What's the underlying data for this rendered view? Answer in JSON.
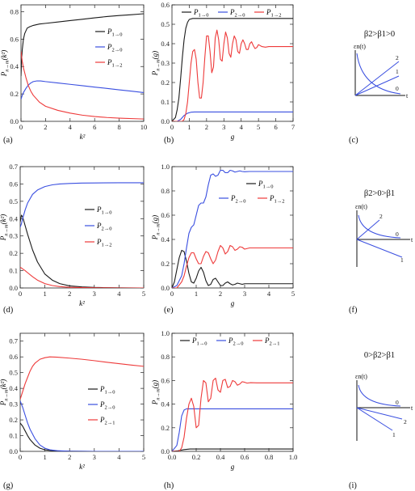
{
  "colors": {
    "black": "#1a1a1a",
    "blue": "#3a4fe0",
    "red": "#ee3a3a",
    "frame": "#222222"
  },
  "panel_labels": [
    "(a)",
    "(b)",
    "(c)",
    "(d)",
    "(e)",
    "(f)",
    "(g)",
    "(h)",
    "(i)"
  ],
  "chart_data": [
    {
      "panel": "(a)",
      "type": "line",
      "xlabel": "k²",
      "ylabel": "P_{n→m}(k²)",
      "xlim": [
        0,
        10
      ],
      "ylim": [
        0,
        0.85
      ],
      "xticks": [
        0,
        2,
        4,
        6,
        8,
        10
      ],
      "yticks": [
        0.0,
        0.2,
        0.4,
        0.6,
        0.8
      ],
      "legend": {
        "placement": "right"
      },
      "series": [
        {
          "name": "P1→0",
          "color": "black",
          "x": [
            0,
            0.05,
            0.1,
            0.2,
            0.3,
            0.5,
            0.7,
            1,
            1.5,
            2,
            3,
            4,
            5,
            6,
            7,
            8,
            9,
            10
          ],
          "y": [
            0.33,
            0.45,
            0.52,
            0.6,
            0.64,
            0.68,
            0.69,
            0.7,
            0.71,
            0.715,
            0.725,
            0.735,
            0.745,
            0.755,
            0.765,
            0.772,
            0.778,
            0.785
          ]
        },
        {
          "name": "P2→0",
          "color": "blue",
          "x": [
            0,
            0.1,
            0.2,
            0.4,
            0.6,
            0.8,
            1,
            1.3,
            1.6,
            2,
            3,
            4,
            5,
            6,
            7,
            8,
            9,
            10
          ],
          "y": [
            0.16,
            0.19,
            0.21,
            0.24,
            0.265,
            0.28,
            0.29,
            0.295,
            0.295,
            0.29,
            0.28,
            0.27,
            0.26,
            0.25,
            0.24,
            0.23,
            0.22,
            0.21
          ]
        },
        {
          "name": "P1→2",
          "color": "red",
          "x": [
            0,
            0.1,
            0.2,
            0.4,
            0.6,
            0.8,
            1,
            1.5,
            2,
            3,
            4,
            5,
            6,
            7,
            8,
            10
          ],
          "y": [
            0.51,
            0.44,
            0.39,
            0.32,
            0.26,
            0.22,
            0.19,
            0.14,
            0.11,
            0.08,
            0.06,
            0.045,
            0.035,
            0.028,
            0.023,
            0.017
          ]
        }
      ]
    },
    {
      "panel": "(b)",
      "type": "line",
      "xlabel": "g",
      "ylabel": "P_{n→m}(g)",
      "xlim": [
        0,
        7
      ],
      "ylim": [
        0,
        0.6
      ],
      "xticks": [
        0,
        1,
        2,
        3,
        4,
        5,
        6,
        7
      ],
      "yticks": [
        0.0,
        0.1,
        0.2,
        0.3,
        0.4,
        0.5,
        0.6
      ],
      "legend": {
        "placement": "top"
      },
      "series": [
        {
          "name": "P1→0",
          "color": "black",
          "x": [
            0,
            0.2,
            0.3,
            0.4,
            0.5,
            0.6,
            0.7,
            0.8,
            0.9,
            1.0,
            1.2,
            7
          ],
          "y": [
            0,
            0.02,
            0.06,
            0.12,
            0.22,
            0.33,
            0.42,
            0.48,
            0.51,
            0.525,
            0.53,
            0.53
          ]
        },
        {
          "name": "P2→0",
          "color": "blue",
          "x": [
            0,
            0.3,
            0.5,
            0.7,
            0.9,
            1.1,
            1.3,
            7
          ],
          "y": [
            0,
            0.0,
            0.01,
            0.03,
            0.042,
            0.047,
            0.048,
            0.048
          ]
        },
        {
          "name": "P1→2",
          "color": "red",
          "x": [
            0,
            0.6,
            0.7,
            0.8,
            0.9,
            1.0,
            1.1,
            1.2,
            1.3,
            1.4,
            1.5,
            1.6,
            1.7,
            1.8,
            1.9,
            2.0,
            2.1,
            2.2,
            2.3,
            2.4,
            2.5,
            2.6,
            2.7,
            2.8,
            2.9,
            3.0,
            3.1,
            3.2,
            3.3,
            3.4,
            3.5,
            3.6,
            3.7,
            3.8,
            3.9,
            4.0,
            4.1,
            4.2,
            4.3,
            4.4,
            4.5,
            4.6,
            4.7,
            4.8,
            4.9,
            5.0,
            5.2,
            5.4,
            5.6,
            7.0
          ],
          "y": [
            0,
            0.0,
            0.01,
            0.04,
            0.1,
            0.2,
            0.3,
            0.36,
            0.37,
            0.32,
            0.2,
            0.12,
            0.12,
            0.2,
            0.33,
            0.44,
            0.44,
            0.36,
            0.25,
            0.28,
            0.43,
            0.47,
            0.42,
            0.32,
            0.31,
            0.4,
            0.46,
            0.43,
            0.35,
            0.33,
            0.4,
            0.44,
            0.42,
            0.36,
            0.35,
            0.4,
            0.42,
            0.4,
            0.37,
            0.37,
            0.4,
            0.41,
            0.39,
            0.375,
            0.38,
            0.395,
            0.385,
            0.382,
            0.385,
            0.385
          ]
        }
      ]
    },
    {
      "panel": "(d)",
      "type": "line",
      "xlabel": "k²",
      "ylabel": "P_{n→m}(k²)",
      "xlim": [
        0,
        5
      ],
      "ylim": [
        0,
        0.7
      ],
      "xticks": [
        0,
        1,
        2,
        3,
        4,
        5
      ],
      "yticks": [
        0.0,
        0.1,
        0.2,
        0.3,
        0.4,
        0.5,
        0.6,
        0.7
      ],
      "legend": {
        "placement": "right"
      },
      "series": [
        {
          "name": "P1→0",
          "color": "black",
          "x": [
            0,
            0.05,
            0.1,
            0.2,
            0.3,
            0.5,
            0.7,
            1.0,
            1.3,
            1.6,
            2.0,
            2.5,
            3,
            4,
            5
          ],
          "y": [
            0.38,
            0.42,
            0.41,
            0.36,
            0.31,
            0.22,
            0.15,
            0.08,
            0.045,
            0.025,
            0.012,
            0.006,
            0.003,
            0.001,
            0.0
          ]
        },
        {
          "name": "P2→0",
          "color": "blue",
          "x": [
            0,
            0.05,
            0.1,
            0.2,
            0.3,
            0.5,
            0.7,
            1.0,
            1.3,
            1.6,
            2.0,
            2.5,
            3,
            4,
            5
          ],
          "y": [
            0.35,
            0.37,
            0.4,
            0.45,
            0.49,
            0.54,
            0.565,
            0.585,
            0.595,
            0.6,
            0.603,
            0.605,
            0.606,
            0.607,
            0.607
          ]
        },
        {
          "name": "P1→2",
          "color": "red",
          "x": [
            0,
            0.05,
            0.1,
            0.2,
            0.3,
            0.5,
            0.7,
            1.0,
            1.3,
            1.6,
            2.0,
            2.5,
            3,
            4,
            5
          ],
          "y": [
            0.12,
            0.115,
            0.11,
            0.1,
            0.088,
            0.065,
            0.045,
            0.025,
            0.014,
            0.008,
            0.004,
            0.002,
            0.001,
            0.0,
            0.0
          ]
        }
      ]
    },
    {
      "panel": "(e)",
      "type": "line",
      "xlabel": "g",
      "ylabel": "P_{n→m}(g)",
      "xlim": [
        0,
        5
      ],
      "ylim": [
        0,
        1.0
      ],
      "xticks": [
        0,
        1,
        2,
        3,
        4,
        5
      ],
      "yticks": [
        0.0,
        0.2,
        0.4,
        0.6,
        0.8,
        1.0
      ],
      "legend": {
        "placement": "center-right"
      },
      "series": [
        {
          "name": "P1→0",
          "color": "black",
          "x": [
            0,
            0.1,
            0.2,
            0.3,
            0.4,
            0.5,
            0.6,
            0.7,
            0.8,
            0.9,
            1.0,
            1.1,
            1.2,
            1.3,
            1.4,
            1.5,
            1.6,
            1.7,
            1.8,
            1.9,
            2.0,
            2.1,
            2.2,
            2.3,
            2.4,
            2.5,
            2.6,
            2.7,
            2.8,
            2.9,
            3.0,
            3.2,
            3.5,
            4.0,
            5.0
          ],
          "y": [
            0,
            0.05,
            0.15,
            0.25,
            0.31,
            0.3,
            0.22,
            0.12,
            0.05,
            0.04,
            0.08,
            0.14,
            0.17,
            0.13,
            0.06,
            0.02,
            0.03,
            0.07,
            0.08,
            0.05,
            0.02,
            0.02,
            0.04,
            0.05,
            0.035,
            0.025,
            0.03,
            0.04,
            0.035,
            0.03,
            0.035,
            0.035,
            0.035,
            0.035,
            0.035
          ]
        },
        {
          "name": "P2→0",
          "color": "blue",
          "x": [
            0,
            0.2,
            0.4,
            0.5,
            0.6,
            0.7,
            0.8,
            0.9,
            1.0,
            1.1,
            1.2,
            1.3,
            1.4,
            1.5,
            1.6,
            1.7,
            1.8,
            1.9,
            2.0,
            2.1,
            2.2,
            2.3,
            2.4,
            2.5,
            2.6,
            2.7,
            2.8,
            2.9,
            3.0,
            3.2,
            3.4,
            3.6,
            4.0,
            5.0
          ],
          "y": [
            0,
            0.02,
            0.1,
            0.2,
            0.33,
            0.45,
            0.5,
            0.52,
            0.6,
            0.68,
            0.7,
            0.7,
            0.75,
            0.85,
            0.93,
            0.94,
            0.92,
            0.93,
            0.97,
            0.97,
            0.95,
            0.95,
            0.97,
            0.965,
            0.955,
            0.96,
            0.965,
            0.96,
            0.958,
            0.96,
            0.96,
            0.96,
            0.96,
            0.96
          ]
        },
        {
          "name": "P1→2",
          "color": "red",
          "x": [
            0,
            0.2,
            0.4,
            0.5,
            0.6,
            0.7,
            0.8,
            0.9,
            1.0,
            1.1,
            1.2,
            1.3,
            1.4,
            1.5,
            1.6,
            1.7,
            1.8,
            1.9,
            2.0,
            2.1,
            2.2,
            2.3,
            2.4,
            2.5,
            2.6,
            2.7,
            2.8,
            2.9,
            3.0,
            3.2,
            3.4,
            4.0,
            5.0
          ],
          "y": [
            0,
            0.0,
            0.05,
            0.1,
            0.18,
            0.25,
            0.29,
            0.29,
            0.24,
            0.2,
            0.2,
            0.26,
            0.3,
            0.29,
            0.24,
            0.2,
            0.23,
            0.3,
            0.35,
            0.33,
            0.28,
            0.3,
            0.35,
            0.34,
            0.31,
            0.32,
            0.34,
            0.335,
            0.32,
            0.33,
            0.33,
            0.33,
            0.33
          ]
        }
      ]
    },
    {
      "panel": "(g)",
      "type": "line",
      "xlabel": "k²",
      "ylabel": "P_{n→m}(k²)",
      "xlim": [
        0,
        5
      ],
      "ylim": [
        0,
        0.75
      ],
      "xticks": [
        0,
        1,
        2,
        3,
        4,
        5
      ],
      "yticks": [
        0.0,
        0.1,
        0.2,
        0.3,
        0.4,
        0.5,
        0.6,
        0.7
      ],
      "legend": {
        "placement": "lower-right"
      },
      "series": [
        {
          "name": "P1→0",
          "color": "black",
          "x": [
            0,
            0.1,
            0.2,
            0.3,
            0.4,
            0.6,
            0.8,
            1.0,
            1.3,
            1.6,
            2.0,
            3,
            4,
            5
          ],
          "y": [
            0.18,
            0.16,
            0.13,
            0.1,
            0.075,
            0.04,
            0.02,
            0.01,
            0.004,
            0.002,
            0.001,
            0.0,
            0.0,
            0.0
          ]
        },
        {
          "name": "P2→0",
          "color": "blue",
          "x": [
            0,
            0.1,
            0.2,
            0.3,
            0.4,
            0.6,
            0.8,
            1.0,
            1.2,
            1.5,
            2.0,
            3,
            4,
            5
          ],
          "y": [
            0.32,
            0.28,
            0.23,
            0.18,
            0.14,
            0.08,
            0.04,
            0.02,
            0.01,
            0.004,
            0.001,
            0.0,
            0.0,
            0.0
          ]
        },
        {
          "name": "P2→1",
          "color": "red",
          "x": [
            0,
            0.1,
            0.2,
            0.3,
            0.4,
            0.5,
            0.6,
            0.8,
            1.0,
            1.2,
            1.5,
            2.0,
            2.5,
            3,
            3.5,
            4,
            4.5,
            5
          ],
          "y": [
            0.33,
            0.38,
            0.43,
            0.47,
            0.51,
            0.54,
            0.56,
            0.585,
            0.595,
            0.6,
            0.598,
            0.592,
            0.585,
            0.576,
            0.566,
            0.557,
            0.548,
            0.54
          ]
        }
      ]
    },
    {
      "panel": "(h)",
      "type": "line",
      "xlabel": "g",
      "ylabel": "P_{n→m}(g)",
      "xlim": [
        0,
        1.0
      ],
      "ylim": [
        0,
        1.0
      ],
      "xticks": [
        0.0,
        0.2,
        0.4,
        0.6,
        0.8,
        1.0
      ],
      "yticks": [
        0.0,
        0.2,
        0.4,
        0.6,
        0.8,
        1.0
      ],
      "legend": {
        "placement": "top"
      },
      "series": [
        {
          "name": "P1→0",
          "color": "black",
          "x": [
            0,
            0.05,
            0.1,
            0.15,
            0.2,
            1.0
          ],
          "y": [
            0,
            0.005,
            0.015,
            0.02,
            0.02,
            0.02
          ]
        },
        {
          "name": "P2→0",
          "color": "blue",
          "x": [
            0,
            0.04,
            0.06,
            0.08,
            0.1,
            0.12,
            0.14,
            1.0
          ],
          "y": [
            0,
            0.05,
            0.16,
            0.3,
            0.35,
            0.36,
            0.36,
            0.36
          ]
        },
        {
          "name": "P2→1",
          "color": "red",
          "x": [
            0,
            0.06,
            0.08,
            0.1,
            0.12,
            0.14,
            0.16,
            0.18,
            0.2,
            0.22,
            0.24,
            0.26,
            0.28,
            0.3,
            0.32,
            0.34,
            0.36,
            0.38,
            0.4,
            0.42,
            0.44,
            0.46,
            0.48,
            0.5,
            0.52,
            0.54,
            0.56,
            0.58,
            0.6,
            0.62,
            0.65,
            0.7,
            1.0
          ],
          "y": [
            0,
            0.0,
            0.03,
            0.12,
            0.28,
            0.4,
            0.45,
            0.38,
            0.2,
            0.22,
            0.45,
            0.6,
            0.58,
            0.42,
            0.45,
            0.6,
            0.62,
            0.52,
            0.5,
            0.6,
            0.61,
            0.54,
            0.55,
            0.6,
            0.59,
            0.56,
            0.57,
            0.59,
            0.585,
            0.578,
            0.582,
            0.58,
            0.58
          ]
        }
      ]
    }
  ],
  "schematics": [
    {
      "panel": "(c)",
      "condition": "β2>β1>0",
      "ylabel": "εn(t)",
      "xlabel": "t",
      "curve_labels": [
        "2",
        "1",
        "0"
      ]
    },
    {
      "panel": "(f)",
      "condition": "β2>0>β1",
      "ylabel": "εn(t)",
      "xlabel": "t",
      "curve_labels": [
        "2",
        "0",
        "1"
      ]
    },
    {
      "panel": "(i)",
      "condition": "0>β2>β1",
      "ylabel": "εn(t)",
      "xlabel": "t",
      "curve_labels": [
        "0",
        "2",
        "1"
      ]
    }
  ]
}
